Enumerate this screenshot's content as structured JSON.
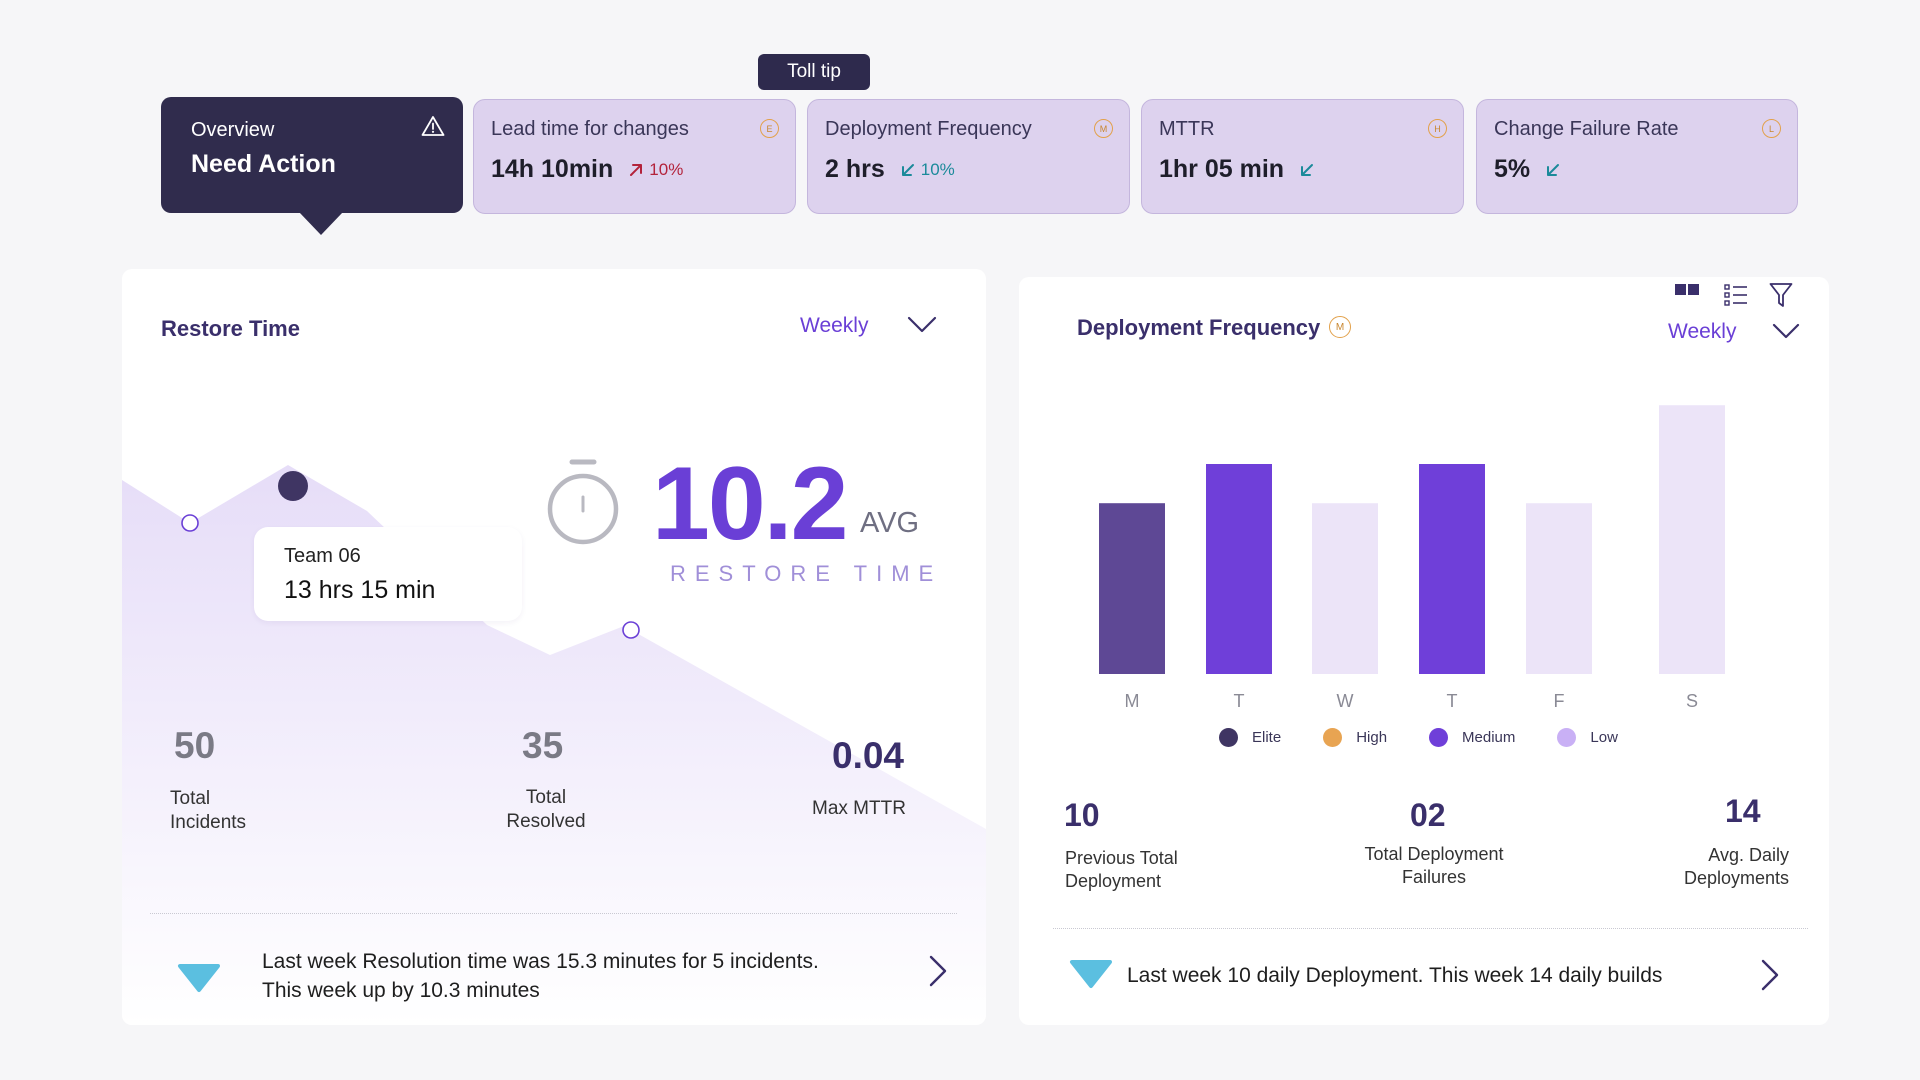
{
  "tooltip_top": "Toll tip",
  "overview": {
    "label": "Overview",
    "headline": "Need Action"
  },
  "metrics": [
    {
      "title": "Lead time for changes",
      "value": "14h 10min",
      "trend": "10%",
      "direction": "up",
      "grade": "E"
    },
    {
      "title": "Deployment Frequency",
      "value": "2 hrs",
      "trend": "10%",
      "direction": "down",
      "grade": "M"
    },
    {
      "title": "MTTR",
      "value": "1hr 05 min",
      "trend": "",
      "direction": "down",
      "grade": "H"
    },
    {
      "title": "Change Failure Rate",
      "value": "5%",
      "trend": "",
      "direction": "down",
      "grade": "L"
    }
  ],
  "restore": {
    "title": "Restore Time",
    "period": "Weekly",
    "tooltip_team": "Team 06",
    "tooltip_time": "13 hrs 15 min",
    "avg_value": "10.2",
    "avg_label": "AVG",
    "avg_caption": "RESTORE TIME",
    "stats": [
      {
        "value": "50",
        "label_line1": "Total",
        "label_line2": "Incidents"
      },
      {
        "value": "35",
        "label_line1": "Total",
        "label_line2": "Resolved"
      },
      {
        "value": "0.04",
        "label_line1": "Max MTTR",
        "label_line2": ""
      }
    ],
    "footer_line1": "Last week Resolution time was 15.3 minutes for 5 incidents.",
    "footer_line2": "This week up by 10.3 minutes"
  },
  "deploy": {
    "title": "Deployment Frequency",
    "grade": "M",
    "period": "Weekly",
    "legend": [
      {
        "label": "Elite",
        "color": "#3f3563"
      },
      {
        "label": "High",
        "color": "#e8a452"
      },
      {
        "label": "Medium",
        "color": "#6f3fd9"
      },
      {
        "label": "Low",
        "color": "#c9b0f5"
      }
    ],
    "stats": [
      {
        "value": "10",
        "label_line1": "Previous Total",
        "label_line2": "Deployment"
      },
      {
        "value": "02",
        "label_line1": "Total Deployment",
        "label_line2": "Failures"
      },
      {
        "value": "14",
        "label_line1": "Avg. Daily",
        "label_line2": "Deployments"
      }
    ],
    "footer": "Last week 10 daily Deployment. This week 14 daily builds"
  },
  "chart_data": {
    "type": "bar",
    "title": "Deployment Frequency",
    "categories": [
      "M",
      "T",
      "W",
      "T",
      "F",
      "S"
    ],
    "values": [
      6.1,
      7.5,
      6.1,
      7.5,
      6.1,
      9.6
    ],
    "tiers": [
      "Elite",
      "Medium",
      "Low",
      "Medium",
      "Low",
      "Low"
    ],
    "colors": [
      "#5e4895",
      "#6f3fd9",
      "#ece4f8",
      "#6f3fd9",
      "#ece4f8",
      "#ece4f8"
    ],
    "ylim": [
      0,
      10
    ],
    "grid": false,
    "legend_position": "bottom"
  }
}
